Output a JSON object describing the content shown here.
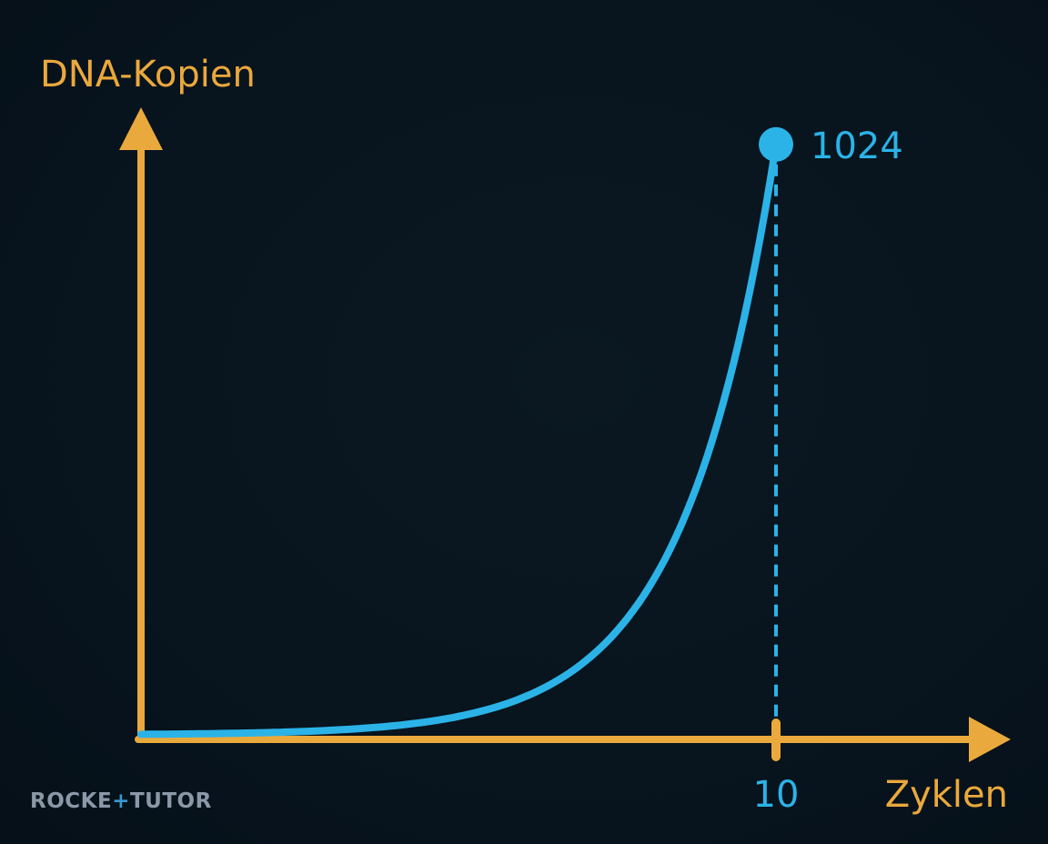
{
  "chart_data": {
    "type": "line",
    "ylabel": "DNA-Kopien",
    "xlabel": "Zyklen",
    "x_tick_labels": [
      "10"
    ],
    "series": [
      {
        "x": [
          0,
          1,
          2,
          3,
          4,
          5,
          6,
          7,
          8,
          9,
          10
        ],
        "values": [
          1,
          2,
          4,
          8,
          16,
          32,
          64,
          128,
          256,
          512,
          1024
        ]
      }
    ],
    "annotations": [
      {
        "x": 10,
        "y": 1024,
        "label": "1024"
      }
    ],
    "xlim": [
      0,
      12
    ],
    "ylim": [
      0,
      1300
    ],
    "grid": false,
    "axis_color": "#eaa93c",
    "series_color": "#2bb3e8"
  },
  "brand": {
    "text_a": "ROCKE",
    "text_plus": "+",
    "text_b": "TUTOR"
  }
}
